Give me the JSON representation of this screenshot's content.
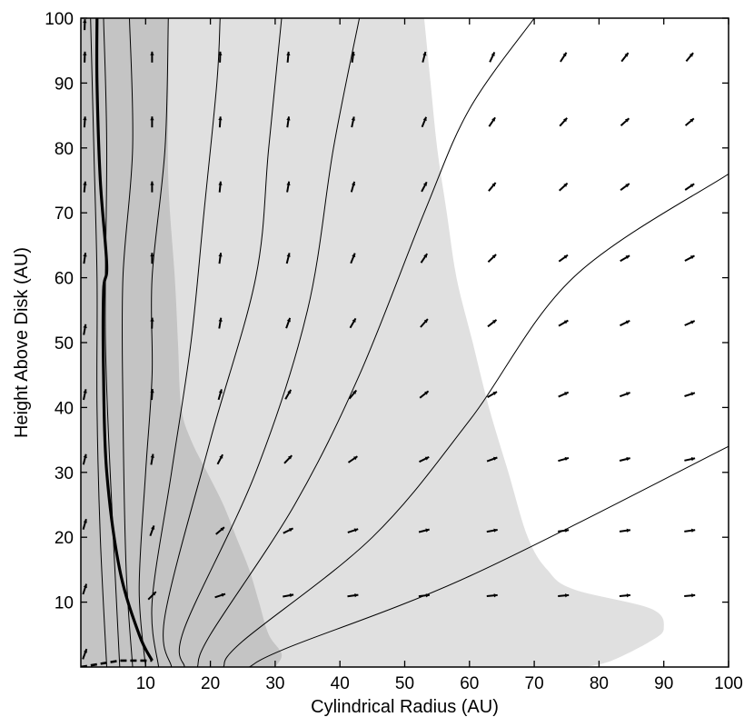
{
  "chart_data": {
    "type": "vector-field-contour",
    "title": "",
    "xlabel": "Cylindrical Radius (AU)",
    "ylabel": "Height Above Disk (AU)",
    "xlim": [
      0,
      100
    ],
    "ylim": [
      0,
      100
    ],
    "xticks": [
      10,
      20,
      30,
      40,
      50,
      60,
      70,
      80,
      90,
      100
    ],
    "yticks": [
      10,
      20,
      30,
      40,
      50,
      60,
      70,
      80,
      90,
      100
    ],
    "grid": false,
    "legend": "none",
    "colors": {
      "dark_region": "#c4c4c4",
      "light_region": "#e0e0e0",
      "lines": "#000000",
      "background": "#ffffff"
    },
    "regions": {
      "dark_boundary": [
        [
          13.5,
          100
        ],
        [
          13.5,
          90
        ],
        [
          13.5,
          75
        ],
        [
          14.5,
          60
        ],
        [
          15,
          50
        ],
        [
          15.5,
          40
        ],
        [
          17,
          35
        ],
        [
          19.5,
          30
        ],
        [
          22,
          25
        ],
        [
          24,
          20
        ],
        [
          26,
          15
        ],
        [
          27.5,
          10
        ],
        [
          29,
          5
        ],
        [
          31,
          2
        ],
        [
          30,
          0
        ]
      ],
      "light_boundary": [
        [
          53,
          100
        ],
        [
          54,
          90
        ],
        [
          55,
          80
        ],
        [
          56.5,
          70
        ],
        [
          58,
          60
        ],
        [
          60.5,
          50
        ],
        [
          63,
          40
        ],
        [
          66,
          30
        ],
        [
          69,
          20
        ],
        [
          72,
          15
        ],
        [
          76,
          12
        ],
        [
          88,
          9
        ],
        [
          90,
          6
        ],
        [
          88,
          4
        ],
        [
          82,
          1
        ],
        [
          78,
          0
        ]
      ]
    },
    "thin_contours": [
      [
        [
          4,
          0
        ],
        [
          3,
          20
        ],
        [
          2.5,
          40
        ],
        [
          2.5,
          60
        ],
        [
          2,
          80
        ],
        [
          1.5,
          100
        ]
      ],
      [
        [
          6,
          0
        ],
        [
          5,
          20
        ],
        [
          3.8,
          50
        ],
        [
          4,
          80
        ],
        [
          3.5,
          100
        ]
      ],
      [
        [
          8,
          0
        ],
        [
          7,
          15
        ],
        [
          6.5,
          40
        ],
        [
          6.5,
          60
        ],
        [
          8,
          80
        ],
        [
          7.5,
          100
        ]
      ],
      [
        [
          10,
          0
        ],
        [
          9,
          12
        ],
        [
          10,
          30
        ],
        [
          11,
          45
        ],
        [
          11,
          60
        ],
        [
          13,
          80
        ],
        [
          13.5,
          100
        ]
      ],
      [
        [
          12,
          0
        ],
        [
          11,
          10
        ],
        [
          14,
          30
        ],
        [
          17,
          50
        ],
        [
          19,
          70
        ],
        [
          21,
          90
        ],
        [
          21.5,
          100
        ]
      ],
      [
        [
          14,
          0
        ],
        [
          13,
          8
        ],
        [
          20,
          35
        ],
        [
          27,
          60
        ],
        [
          29,
          80
        ],
        [
          31,
          100
        ]
      ],
      [
        [
          16,
          0
        ],
        [
          16,
          6
        ],
        [
          27,
          30
        ],
        [
          35,
          55
        ],
        [
          39,
          80
        ],
        [
          43,
          100
        ]
      ],
      [
        [
          18,
          0
        ],
        [
          20,
          5
        ],
        [
          33,
          25
        ],
        [
          43,
          45
        ],
        [
          53,
          70
        ],
        [
          60,
          86
        ],
        [
          70,
          100
        ]
      ],
      [
        [
          22,
          0
        ],
        [
          25,
          4
        ],
        [
          45,
          20
        ],
        [
          60,
          38
        ],
        [
          76,
          60
        ],
        [
          100,
          76
        ]
      ],
      [
        [
          26,
          0
        ],
        [
          32,
          3
        ],
        [
          60,
          14
        ],
        [
          100,
          34
        ]
      ]
    ],
    "thick_contour": [
      [
        11,
        1
      ],
      [
        9,
        5
      ],
      [
        6,
        15
      ],
      [
        4,
        30
      ],
      [
        3.5,
        45
      ],
      [
        3.5,
        58
      ],
      [
        4,
        62
      ],
      [
        3,
        75
      ],
      [
        2.5,
        90
      ],
      [
        2.5,
        100
      ]
    ],
    "dashed_contour": [
      [
        0,
        0
      ],
      [
        6,
        1
      ],
      [
        11,
        1
      ]
    ],
    "vectors": [
      {
        "y": 94,
        "x": [
          11,
          21.5,
          32,
          42,
          53,
          63.5,
          74.5,
          84,
          94
        ],
        "angle_deg": [
          90,
          88,
          85,
          82,
          75,
          65,
          57,
          52,
          50
        ]
      },
      {
        "y": 84,
        "x": [
          11,
          21.5,
          32,
          42,
          53,
          63.5,
          74.5,
          84,
          94
        ],
        "angle_deg": [
          90,
          86,
          82,
          78,
          68,
          56,
          48,
          42,
          40
        ]
      },
      {
        "y": 74,
        "x": [
          11,
          21.5,
          32,
          42,
          53,
          63.5,
          74.5,
          84,
          94
        ],
        "angle_deg": [
          90,
          84,
          80,
          74,
          62,
          50,
          42,
          36,
          34
        ]
      },
      {
        "y": 63,
        "x": [
          11,
          21.5,
          32,
          42,
          53,
          63.5,
          74.5,
          84,
          94
        ],
        "angle_deg": [
          90,
          82,
          76,
          68,
          56,
          44,
          36,
          30,
          28
        ]
      },
      {
        "y": 53,
        "x": [
          11,
          21.5,
          32,
          42,
          53,
          63.5,
          74.5,
          84,
          94
        ],
        "angle_deg": [
          88,
          80,
          70,
          60,
          48,
          38,
          30,
          26,
          24
        ]
      },
      {
        "y": 42,
        "x": [
          11,
          21.5,
          32,
          42,
          53,
          63.5,
          74.5,
          84,
          94
        ],
        "angle_deg": [
          86,
          74,
          60,
          50,
          38,
          30,
          24,
          20,
          18
        ]
      },
      {
        "y": 32,
        "x": [
          11,
          21.5,
          32,
          42,
          53,
          63.5,
          74.5,
          84,
          94
        ],
        "angle_deg": [
          80,
          62,
          46,
          34,
          26,
          20,
          16,
          14,
          12
        ]
      },
      {
        "y": 21,
        "x": [
          11,
          21.5,
          32,
          42,
          53,
          63.5,
          74.5,
          84,
          94
        ],
        "angle_deg": [
          70,
          40,
          26,
          18,
          14,
          10,
          8,
          8,
          8
        ]
      },
      {
        "y": 11,
        "x": [
          11,
          21.5,
          32,
          42,
          53,
          63.5,
          74.5,
          84,
          94
        ],
        "angle_deg": [
          45,
          18,
          10,
          8,
          6,
          5,
          5,
          5,
          5
        ]
      }
    ],
    "left_edge_vectors": {
      "x": 0.6,
      "y": [
        2,
        12,
        22,
        32,
        42,
        52,
        63,
        74,
        84,
        94,
        99
      ],
      "angle_deg": [
        70,
        72,
        74,
        76,
        78,
        80,
        82,
        84,
        86,
        88,
        88
      ]
    }
  }
}
